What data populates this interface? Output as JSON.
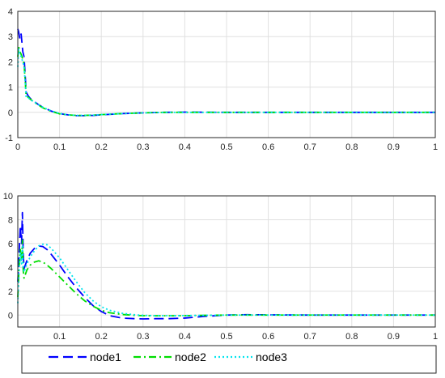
{
  "chart_data": [
    {
      "type": "line",
      "title": "",
      "xlabel": "",
      "ylabel": "",
      "xlim": [
        0,
        1
      ],
      "ylim": [
        -1,
        4
      ],
      "grid": true,
      "x_ticks": [
        0,
        0.1,
        0.2,
        0.3,
        0.4,
        0.5,
        0.6,
        0.7,
        0.8,
        0.9,
        1
      ],
      "y_ticks": [
        -1,
        0,
        1,
        2,
        3,
        4
      ],
      "series": [
        {
          "name": "node1",
          "x": [
            0,
            0.002,
            0.005,
            0.008,
            0.012,
            0.015,
            0.018,
            0.02,
            0.025,
            0.03,
            0.04,
            0.05,
            0.06,
            0.08,
            0.1,
            0.12,
            0.14,
            0.16,
            0.18,
            0.2,
            0.25,
            0.3,
            0.35,
            0.4,
            0.5,
            0.6,
            0.8,
            1.0
          ],
          "y": [
            3.3,
            3.2,
            2.9,
            3.1,
            2.4,
            2.2,
            1.4,
            0.8,
            0.65,
            0.55,
            0.42,
            0.3,
            0.2,
            0.05,
            -0.05,
            -0.1,
            -0.13,
            -0.13,
            -0.12,
            -0.1,
            -0.05,
            -0.02,
            0.0,
            0.01,
            0.0,
            0.0,
            0.0,
            0.0
          ]
        },
        {
          "name": "node2",
          "x": [
            0,
            0.002,
            0.005,
            0.008,
            0.012,
            0.015,
            0.018,
            0.02,
            0.025,
            0.03,
            0.04,
            0.05,
            0.06,
            0.08,
            0.1,
            0.12,
            0.14,
            0.16,
            0.18,
            0.2,
            0.25,
            0.3,
            0.35,
            0.4,
            0.5,
            0.6,
            0.8,
            1.0
          ],
          "y": [
            2.2,
            2.6,
            2.4,
            2.3,
            2.1,
            1.9,
            1.2,
            0.65,
            0.6,
            0.52,
            0.4,
            0.28,
            0.18,
            0.04,
            -0.06,
            -0.1,
            -0.12,
            -0.12,
            -0.11,
            -0.09,
            -0.05,
            -0.02,
            0.0,
            0.0,
            0.0,
            0.0,
            0.0,
            0.0
          ]
        },
        {
          "name": "node3",
          "x": [
            0,
            0.002,
            0.005,
            0.008,
            0.012,
            0.015,
            0.018,
            0.02,
            0.025,
            0.03,
            0.04,
            0.05,
            0.06,
            0.08,
            0.1,
            0.12,
            0.14,
            0.16,
            0.18,
            0.2,
            0.25,
            0.3,
            0.35,
            0.4,
            0.5,
            0.6,
            0.8,
            1.0
          ],
          "y": [
            1.8,
            2.5,
            2.3,
            2.2,
            2.0,
            1.8,
            1.15,
            0.6,
            0.58,
            0.5,
            0.4,
            0.3,
            0.2,
            0.06,
            -0.04,
            -0.1,
            -0.12,
            -0.12,
            -0.11,
            -0.09,
            -0.05,
            -0.02,
            0.0,
            0.0,
            0.0,
            0.0,
            0.0,
            0.0
          ]
        }
      ]
    },
    {
      "type": "line",
      "title": "",
      "xlabel": "",
      "ylabel": "",
      "xlim": [
        0,
        1
      ],
      "ylim": [
        -1,
        10
      ],
      "grid": true,
      "x_ticks": [
        0.1,
        0.2,
        0.3,
        0.4,
        0.5,
        0.6,
        0.7,
        0.8,
        0.9,
        1
      ],
      "y_ticks": [
        0,
        2,
        4,
        6,
        8,
        10
      ],
      "series": [
        {
          "name": "node1",
          "x": [
            0,
            0.003,
            0.006,
            0.009,
            0.011,
            0.013,
            0.015,
            0.018,
            0.022,
            0.03,
            0.04,
            0.05,
            0.06,
            0.07,
            0.08,
            0.1,
            0.12,
            0.14,
            0.16,
            0.18,
            0.2,
            0.22,
            0.25,
            0.28,
            0.3,
            0.33,
            0.36,
            0.4,
            0.45,
            0.5,
            0.55,
            0.6,
            0.7,
            0.8,
            1.0
          ],
          "y": [
            2.8,
            5.0,
            7.5,
            6.0,
            8.6,
            5.2,
            3.9,
            4.2,
            4.6,
            5.2,
            5.6,
            5.8,
            5.75,
            5.5,
            5.1,
            4.2,
            3.2,
            2.3,
            1.5,
            0.8,
            0.3,
            -0.05,
            -0.25,
            -0.3,
            -0.32,
            -0.3,
            -0.3,
            -0.25,
            -0.1,
            0.0,
            0.03,
            0.02,
            0.0,
            0.0,
            0.0
          ]
        },
        {
          "name": "node2",
          "x": [
            0,
            0.003,
            0.006,
            0.009,
            0.011,
            0.013,
            0.015,
            0.018,
            0.022,
            0.03,
            0.04,
            0.05,
            0.06,
            0.07,
            0.08,
            0.1,
            0.12,
            0.14,
            0.16,
            0.18,
            0.2,
            0.22,
            0.25,
            0.28,
            0.3,
            0.33,
            0.36,
            0.4,
            0.45,
            0.5,
            0.55,
            0.6,
            0.7,
            0.8,
            1.0
          ],
          "y": [
            1.5,
            4.0,
            5.5,
            4.5,
            6.3,
            3.7,
            3.1,
            3.4,
            3.8,
            4.2,
            4.45,
            4.55,
            4.45,
            4.2,
            3.9,
            3.2,
            2.5,
            1.8,
            1.2,
            0.75,
            0.4,
            0.2,
            0.05,
            -0.02,
            -0.05,
            -0.06,
            -0.06,
            -0.05,
            -0.02,
            0.0,
            0.0,
            0.0,
            0.0,
            0.0,
            0.0
          ]
        },
        {
          "name": "node3",
          "x": [
            0,
            0.003,
            0.006,
            0.009,
            0.011,
            0.013,
            0.015,
            0.018,
            0.022,
            0.03,
            0.04,
            0.05,
            0.06,
            0.07,
            0.08,
            0.1,
            0.12,
            0.14,
            0.16,
            0.18,
            0.2,
            0.22,
            0.25,
            0.28,
            0.3,
            0.33,
            0.36,
            0.4,
            0.45,
            0.5,
            0.55,
            0.6,
            0.7,
            0.8,
            1.0
          ],
          "y": [
            1.0,
            3.5,
            5.2,
            4.3,
            5.9,
            4.0,
            3.6,
            3.9,
            4.3,
            4.9,
            5.4,
            5.8,
            5.95,
            5.9,
            5.6,
            4.8,
            3.8,
            2.8,
            1.9,
            1.2,
            0.7,
            0.4,
            0.15,
            0.03,
            -0.02,
            -0.05,
            -0.05,
            -0.04,
            -0.02,
            0.0,
            0.0,
            0.0,
            0.0,
            0.0,
            0.0
          ]
        }
      ]
    }
  ],
  "legend": {
    "placement": "bottom",
    "entries": [
      {
        "label": "node1",
        "color": "#0000ff",
        "style": "dashed"
      },
      {
        "label": "node2",
        "color": "#00dd00",
        "style": "dashdot"
      },
      {
        "label": "node3",
        "color": "#00e5ee",
        "style": "dotted"
      }
    ]
  },
  "colors": {
    "node1": "#0000ff",
    "node2": "#00dd00",
    "node3": "#00e5ee",
    "grid": "#e0e0e0"
  }
}
